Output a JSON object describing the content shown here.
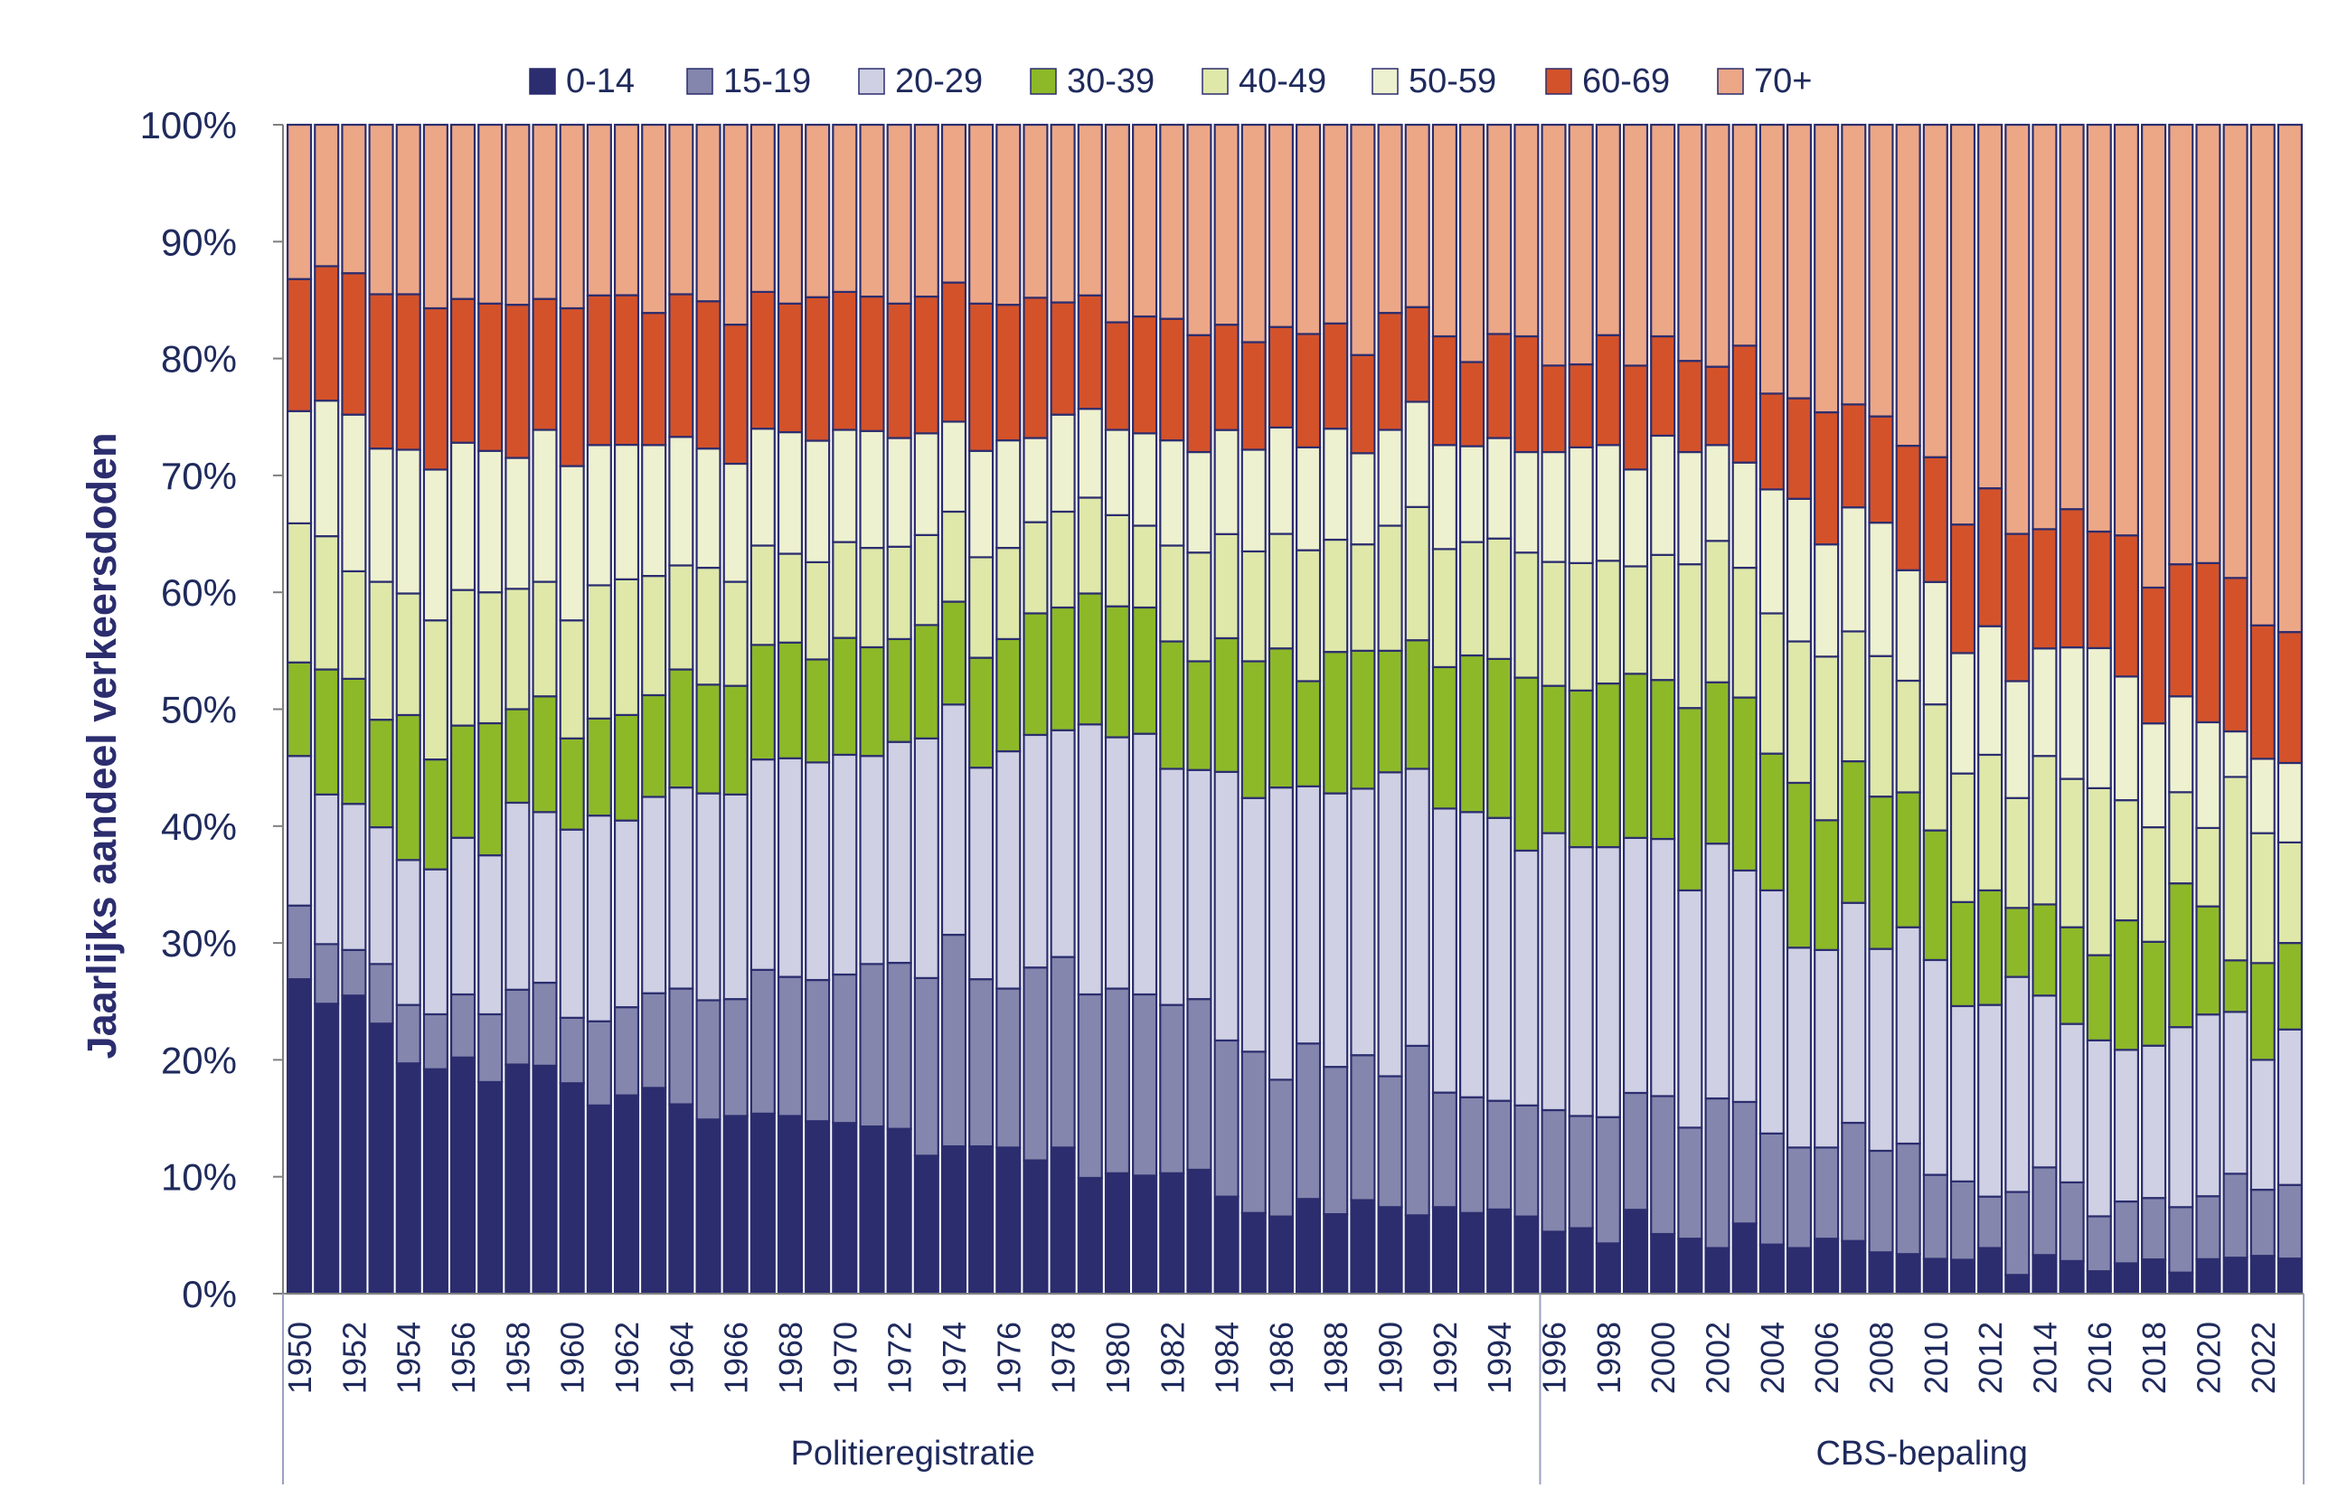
{
  "chart_data": {
    "type": "bar",
    "stacked": true,
    "normalized_percent": true,
    "ylabel": "Jaarlijks aandeel verkeersdoden",
    "xlabel": "",
    "ylim": [
      0,
      100
    ],
    "y_ticks": [
      "0%",
      "10%",
      "20%",
      "30%",
      "40%",
      "50%",
      "60%",
      "70%",
      "80%",
      "90%",
      "100%"
    ],
    "legend_position": "top",
    "categories": [
      1950,
      1951,
      1952,
      1953,
      1954,
      1955,
      1956,
      1957,
      1958,
      1959,
      1960,
      1961,
      1962,
      1963,
      1964,
      1965,
      1966,
      1967,
      1968,
      1969,
      1970,
      1971,
      1972,
      1973,
      1974,
      1975,
      1976,
      1977,
      1978,
      1979,
      1980,
      1981,
      1982,
      1983,
      1984,
      1985,
      1986,
      1987,
      1988,
      1989,
      1990,
      1991,
      1992,
      1993,
      1994,
      1995,
      1996,
      1997,
      1998,
      1999,
      2000,
      2001,
      2002,
      2003,
      2004,
      2005,
      2006,
      2007,
      2008,
      2009,
      2010,
      2011,
      2012,
      2013,
      2014,
      2015,
      2016,
      2017,
      2018,
      2019,
      2020,
      2021,
      2022,
      2023
    ],
    "x_tick_labels": [
      "1950",
      "1952",
      "1954",
      "1956",
      "1958",
      "1960",
      "1962",
      "1964",
      "1966",
      "1968",
      "1970",
      "1972",
      "1974",
      "1976",
      "1978",
      "1980",
      "1982",
      "1984",
      "1986",
      "1988",
      "1990",
      "1992",
      "1994",
      "1996",
      "1998",
      "2000",
      "2002",
      "2004",
      "2006",
      "2008",
      "2010",
      "2012",
      "2014",
      "2016",
      "2018",
      "2020",
      "2022"
    ],
    "groups": [
      {
        "label": "Politieregistratie",
        "from": 1950,
        "to": 1995
      },
      {
        "label": "CBS-bepaling",
        "from": 1996,
        "to": 2023
      }
    ],
    "series": [
      {
        "name": "0-14",
        "color": "#2b2d6e",
        "values": [
          26.9,
          24.8,
          25.5,
          23.1,
          19.7,
          19.2,
          20.2,
          18.1,
          19.6,
          19.5,
          18,
          16.1,
          17.1,
          17.6,
          16.2,
          14.9,
          15.2,
          15.4,
          15.2,
          14.9,
          14.6,
          14.3,
          14.1,
          11.8,
          12.6,
          12.6,
          12.5,
          11.4,
          12.5,
          9.9,
          10.3,
          10.1,
          10.3,
          10.6,
          8.2,
          6.9,
          6.6,
          8.1,
          6.8,
          8,
          7.4,
          6.7,
          7.4,
          6.9,
          7.2,
          6.6,
          5.3,
          5.6,
          4.3,
          7.1,
          5.1,
          4.7,
          3.9,
          6,
          4.2,
          3.9,
          4.7,
          4.5,
          3.5,
          3.4,
          2.9,
          2.9,
          3.9,
          1.6,
          3.3,
          2.9,
          2,
          2.6,
          2.9,
          1.8,
          2.9,
          3,
          3.2,
          3
        ]
      },
      {
        "name": "15-19",
        "color": "#8486ad",
        "values": [
          6.3,
          5.1,
          3.9,
          5.1,
          5,
          4.7,
          5.4,
          5.8,
          6.4,
          7.1,
          5.6,
          7.2,
          7.6,
          8.1,
          9.9,
          10.2,
          10,
          12.3,
          11.9,
          12.2,
          12.7,
          13.9,
          14.2,
          15.2,
          18.1,
          14.3,
          13.6,
          16.5,
          16.3,
          15.7,
          15.8,
          15.5,
          14.4,
          14.6,
          13.2,
          13.8,
          11.7,
          13.3,
          12.6,
          12.4,
          11.2,
          14.5,
          9.8,
          9.9,
          9.3,
          9.5,
          10.4,
          9.6,
          10.8,
          9.9,
          11.8,
          9.5,
          12.8,
          10.4,
          9.5,
          8.6,
          7.8,
          10.1,
          8.6,
          9.5,
          7,
          6.7,
          4.4,
          7.1,
          7.5,
          7,
          4.9,
          5.3,
          5.2,
          5.6,
          5.3,
          7,
          5.6,
          6.3
        ]
      },
      {
        "name": "20-29",
        "color": "#cfd0e3",
        "values": [
          12.8,
          12.8,
          12.5,
          11.7,
          12.4,
          12.4,
          13.4,
          13.6,
          16,
          14.6,
          16.1,
          17.6,
          16.1,
          16.8,
          17.2,
          17.7,
          17.5,
          18,
          18.7,
          18.8,
          18.8,
          17.8,
          18.9,
          20.5,
          19.7,
          18.1,
          20.3,
          19.9,
          19.4,
          23.1,
          21.5,
          22.3,
          20.2,
          19.6,
          22.7,
          21.7,
          25,
          22,
          23.4,
          22.8,
          26,
          23.7,
          24.3,
          24.4,
          24.2,
          21.8,
          23.7,
          23,
          23.1,
          21.6,
          22,
          20.3,
          21.8,
          19.8,
          20.8,
          17.1,
          16.9,
          18.8,
          17.1,
          18.6,
          17.9,
          15,
          16.4,
          18.4,
          14.7,
          14.1,
          15.7,
          13,
          12.9,
          15.4,
          15.3,
          13.5,
          11,
          13.3
        ]
      },
      {
        "name": "30-39",
        "color": "#8db929",
        "values": [
          8,
          10.7,
          10.7,
          9.2,
          12.4,
          9.4,
          9.6,
          11.3,
          8,
          9.9,
          7.8,
          8.3,
          9.1,
          8.7,
          10.1,
          9.3,
          9.3,
          9.8,
          9.9,
          8.9,
          10,
          9.3,
          8.8,
          9.7,
          8.8,
          9.4,
          9.6,
          10.4,
          10.5,
          11.2,
          11.2,
          10.8,
          10.9,
          9.3,
          11.3,
          11.7,
          11.9,
          9,
          12.1,
          11.8,
          10.4,
          11,
          12.1,
          13.4,
          13.6,
          14.8,
          12.6,
          13.4,
          14,
          13.9,
          13.6,
          15.6,
          13.8,
          14.8,
          11.7,
          14.1,
          11.1,
          12.1,
          12.9,
          11.6,
          10.8,
          8.9,
          9.8,
          5.9,
          7.8,
          8.6,
          7.6,
          11.1,
          8.8,
          12.3,
          9.1,
          4.3,
          8.2,
          7.4
        ]
      },
      {
        "name": "40-49",
        "color": "#dfe8a9",
        "values": [
          11.9,
          11.4,
          9.2,
          11.8,
          10.4,
          11.9,
          11.6,
          11.2,
          10.3,
          9.8,
          10.1,
          11.4,
          11.7,
          10.2,
          8.9,
          10,
          8.9,
          8.5,
          7.6,
          8.4,
          8.2,
          8.5,
          7.9,
          7.7,
          7.7,
          8.6,
          7.8,
          7.8,
          8.2,
          8.2,
          7.8,
          7,
          8.2,
          9.3,
          8.8,
          9.4,
          9.8,
          11.2,
          9.6,
          9.1,
          10.7,
          11.4,
          10.1,
          9.7,
          10.3,
          10.7,
          10.6,
          10.9,
          10.5,
          9.1,
          10.7,
          12.3,
          12.1,
          11.1,
          12,
          12.1,
          14,
          11.1,
          11.9,
          9.6,
          10.5,
          11,
          11.6,
          9.4,
          12.7,
          13.2,
          14.9,
          10.3,
          9.7,
          7.8,
          6.6,
          15.3,
          11,
          8.6
        ]
      },
      {
        "name": "50-59",
        "color": "#eef1cf",
        "values": [
          9.6,
          11.6,
          13.4,
          11.4,
          12.3,
          12.9,
          12.6,
          12.1,
          11.2,
          13,
          13.2,
          12,
          11.6,
          11.2,
          11,
          10.2,
          10.1,
          10,
          10.4,
          10.5,
          9.6,
          10,
          9.3,
          8.7,
          7.7,
          9.1,
          9.2,
          7.2,
          8.3,
          7.6,
          7.3,
          7.9,
          9,
          8.6,
          8.8,
          8.7,
          9.1,
          8.8,
          9.5,
          7.8,
          8.2,
          9,
          8.9,
          8.2,
          8.6,
          8.6,
          9.4,
          9.9,
          9.9,
          8.2,
          10.2,
          9.6,
          8.2,
          9,
          10.6,
          12.2,
          9.6,
          10.6,
          11.3,
          9.5,
          10.2,
          10.3,
          11,
          10,
          9.2,
          11.7,
          12.5,
          10.6,
          8.8,
          8.2,
          8.9,
          3.8,
          6.3,
          6.8
        ]
      },
      {
        "name": "60-69",
        "color": "#d4522a",
        "values": [
          11.3,
          11.5,
          12.1,
          13.2,
          13.3,
          13.8,
          12.3,
          12.6,
          13.1,
          11.2,
          13.5,
          12.8,
          12.9,
          11.3,
          12.2,
          12.6,
          11.9,
          11.7,
          11,
          12.4,
          11.8,
          11.5,
          11.5,
          11.7,
          11.9,
          12.6,
          11.6,
          12,
          9.6,
          9.7,
          9.2,
          10,
          10.4,
          10,
          8.9,
          9.2,
          8.6,
          9.7,
          9,
          8.4,
          10,
          8.1,
          9.3,
          7.2,
          8.9,
          9.9,
          7.4,
          7.1,
          9.4,
          8.8,
          8.5,
          7.8,
          6.7,
          10,
          8.2,
          8.6,
          11.3,
          8.8,
          9,
          10.7,
          10.4,
          11,
          11.8,
          12.6,
          10.2,
          12.3,
          10.4,
          12.1,
          11.5,
          11.3,
          13.4,
          12.8,
          11.3,
          11.2
        ]
      },
      {
        "name": "70+",
        "color": "#eca787",
        "values": [
          13.2,
          12.1,
          12.7,
          14.5,
          14.5,
          15.7,
          14.9,
          15.3,
          15.4,
          14.9,
          15.7,
          14.6,
          14.7,
          16.1,
          14.5,
          15.1,
          17.1,
          14.3,
          15.3,
          14.9,
          14.3,
          14.7,
          15.3,
          14.7,
          13.5,
          15.3,
          15.4,
          14.8,
          15.2,
          14.6,
          16.9,
          16.4,
          16.6,
          18,
          16.9,
          18.6,
          17.3,
          17.9,
          17,
          19.7,
          16.1,
          15.6,
          18.1,
          20.3,
          17.9,
          18.1,
          20.6,
          20.5,
          18,
          20.4,
          18.1,
          20.2,
          20.7,
          18.9,
          23,
          23.4,
          24.6,
          23.9,
          24.7,
          27.6,
          27.7,
          34.2,
          31.1,
          35,
          34.6,
          34.2,
          36.3,
          35.2,
          39.2,
          37.6,
          36.9,
          37.8,
          42.4,
          43.4
        ]
      }
    ]
  }
}
